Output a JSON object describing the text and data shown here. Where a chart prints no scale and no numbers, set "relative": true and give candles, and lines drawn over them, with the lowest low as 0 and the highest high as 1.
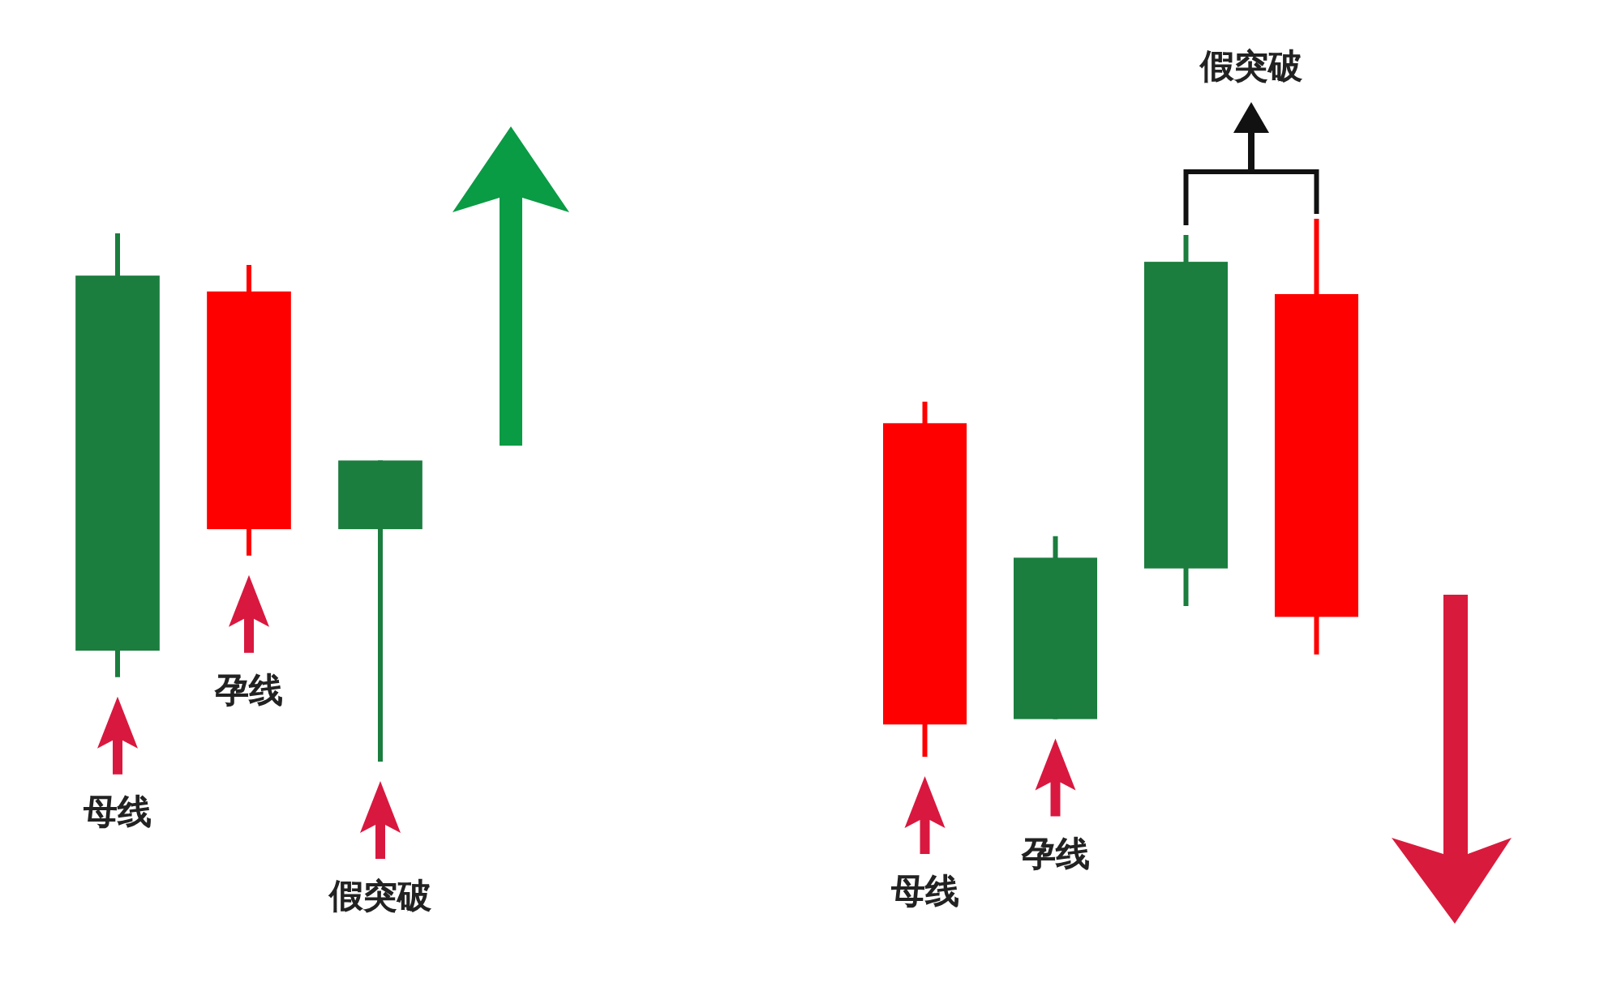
{
  "chart_data": [
    {
      "type": "candlestick",
      "relative": true,
      "categories": [
        null,
        null,
        null
      ],
      "ohlc": [
        [
          0.21,
          1,
          0.16,
          0.92
        ],
        [
          0.89,
          0.94,
          0.39,
          0.44
        ],
        [
          0.44,
          0.57,
          0,
          0.57
        ]
      ],
      "colors": [
        "#1b7d3e",
        "#ff0000",
        "#1b7d3e"
      ],
      "annotations": [
        "母线",
        "孕线",
        "假突破"
      ]
    },
    {
      "type": "candlestick",
      "relative": true,
      "categories": [
        null,
        null,
        null,
        null
      ],
      "ohlc": [
        [
          0.62,
          0.66,
          0,
          0.06
        ],
        [
          0.07,
          0.41,
          0.07,
          0.37
        ],
        [
          0.35,
          0.97,
          0.28,
          0.92
        ],
        [
          0.86,
          1,
          0.19,
          0.26
        ]
      ],
      "colors": [
        "#ff0000",
        "#1b7d3e",
        "#1b7d3e",
        "#ff0000"
      ],
      "annotations": [
        "母线",
        "孕线",
        "假突破"
      ]
    }
  ]
}
